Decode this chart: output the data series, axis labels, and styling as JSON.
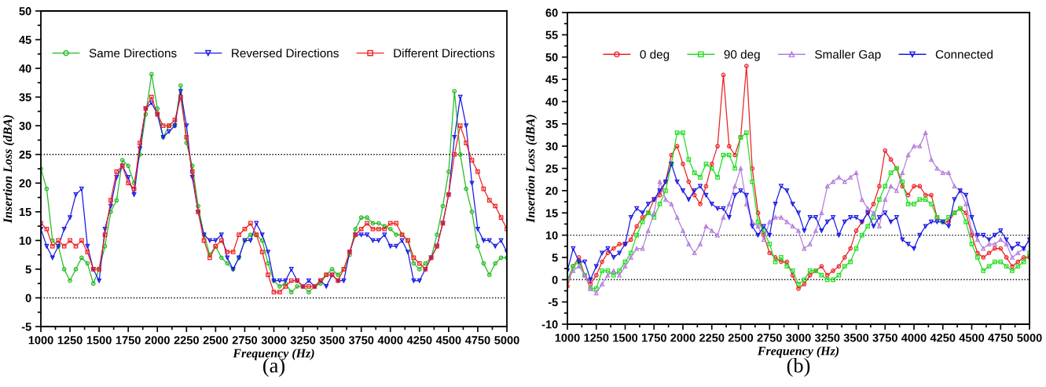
{
  "chart_data": [
    {
      "type": "line",
      "xlabel": "Frequency (Hz)",
      "ylabel": "Insertion Loss (dBA)",
      "annotations": [
        "(a)"
      ],
      "legend": "top",
      "line_style": "solid",
      "x": [
        1000,
        1050,
        1100,
        1150,
        1200,
        1250,
        1300,
        1350,
        1400,
        1450,
        1500,
        1550,
        1600,
        1650,
        1700,
        1750,
        1800,
        1850,
        1900,
        1950,
        2000,
        2050,
        2100,
        2150,
        2200,
        2250,
        2300,
        2350,
        2400,
        2450,
        2500,
        2550,
        2600,
        2650,
        2700,
        2750,
        2800,
        2850,
        2900,
        2950,
        3000,
        3050,
        3100,
        3150,
        3200,
        3250,
        3300,
        3350,
        3400,
        3450,
        3500,
        3550,
        3600,
        3650,
        3700,
        3750,
        3800,
        3850,
        3900,
        3950,
        4000,
        4050,
        4100,
        4150,
        4200,
        4250,
        4300,
        4350,
        4400,
        4450,
        4500,
        4550,
        4600,
        4650,
        4700,
        4750,
        4800,
        4850,
        4900,
        4950,
        5000
      ],
      "xlim": [
        1000,
        5000
      ],
      "xticks": [
        1000,
        1250,
        1500,
        1750,
        2000,
        2250,
        2500,
        2750,
        3000,
        3250,
        3500,
        3750,
        4000,
        4250,
        4500,
        4750,
        5000
      ],
      "ylim": [
        -5,
        50
      ],
      "yticks": [
        -5,
        0,
        5,
        10,
        15,
        20,
        25,
        30,
        35,
        40,
        45,
        50
      ],
      "ref_lines": [
        {
          "axis": "y",
          "value": 25,
          "color": "#000000",
          "line_style": "dotted"
        },
        {
          "axis": "y",
          "value": 0,
          "color": "#000000",
          "line_style": "dotted"
        }
      ],
      "series": [
        {
          "name": "Same Directions",
          "color": "#22bb22",
          "marker": "circle",
          "values": [
            22.5,
            19,
            10,
            9,
            5,
            3,
            5,
            7,
            6,
            2.5,
            5,
            9,
            15,
            17,
            24,
            23,
            20,
            25,
            32,
            39,
            33,
            28,
            30,
            30,
            37,
            27,
            23,
            16,
            11,
            7.5,
            9,
            7,
            6,
            5,
            7,
            10,
            11,
            11,
            10,
            6,
            3,
            2,
            2.5,
            1,
            2,
            2,
            1,
            2,
            2.5,
            4,
            5,
            4,
            5,
            7.5,
            12,
            14,
            14,
            13,
            13,
            12.5,
            12,
            11,
            11,
            10,
            6,
            5,
            6,
            7,
            11,
            16,
            22,
            36,
            25,
            19,
            15,
            9,
            6,
            4,
            6,
            7,
            7
          ]
        },
        {
          "name": "Reversed Directions",
          "color": "#1a1ae6",
          "marker": "triangle_down",
          "values": [
            12,
            9,
            7,
            9,
            12,
            14,
            18,
            19,
            9,
            5,
            3,
            12,
            16,
            21,
            23,
            21,
            18,
            26,
            33,
            34,
            32,
            28,
            29,
            30,
            36,
            30,
            21,
            15,
            11,
            10,
            10,
            11,
            7,
            5,
            7,
            10,
            10,
            13,
            11,
            8,
            3,
            3,
            3,
            5,
            3,
            2,
            3,
            2,
            3,
            2,
            4,
            3,
            3,
            8,
            11,
            11,
            11,
            10,
            10,
            11,
            9,
            9,
            10,
            8,
            3,
            3,
            5,
            7,
            9,
            13,
            18,
            28,
            35,
            30,
            20,
            12,
            10,
            10,
            9,
            10,
            8
          ]
        },
        {
          "name": "Different Directions",
          "color": "#ee2222",
          "marker": "square",
          "values": [
            13,
            12,
            9,
            10,
            9,
            10,
            9,
            10,
            8,
            5,
            5,
            11,
            17,
            22,
            23,
            20,
            19,
            27,
            33,
            35,
            32,
            30,
            30,
            31,
            35,
            28,
            22,
            15,
            10,
            7,
            9,
            10,
            8,
            8,
            11,
            12,
            13,
            11,
            8,
            4,
            1,
            1,
            2,
            3,
            3,
            2,
            2,
            2,
            3,
            4,
            4,
            3,
            5,
            8,
            11,
            12,
            13,
            12,
            12,
            12,
            13,
            13,
            11,
            10,
            7,
            6,
            5,
            7,
            9,
            13,
            18,
            25,
            30,
            27,
            24,
            22,
            19,
            17,
            16,
            14,
            12
          ]
        }
      ]
    },
    {
      "type": "line",
      "xlabel": "Frequency (Hz)",
      "ylabel": "Insertion Loss (dBA)",
      "annotations": [
        "(b)"
      ],
      "legend": "top",
      "line_style": "solid",
      "x": [
        1000,
        1050,
        1100,
        1150,
        1200,
        1250,
        1300,
        1350,
        1400,
        1450,
        1500,
        1550,
        1600,
        1650,
        1700,
        1750,
        1800,
        1850,
        1900,
        1950,
        2000,
        2050,
        2100,
        2150,
        2200,
        2250,
        2300,
        2350,
        2400,
        2450,
        2500,
        2550,
        2600,
        2650,
        2700,
        2750,
        2800,
        2850,
        2900,
        2950,
        3000,
        3050,
        3100,
        3150,
        3200,
        3250,
        3300,
        3350,
        3400,
        3450,
        3500,
        3550,
        3600,
        3650,
        3700,
        3750,
        3800,
        3850,
        3900,
        3950,
        4000,
        4050,
        4100,
        4150,
        4200,
        4250,
        4300,
        4350,
        4400,
        4450,
        4500,
        4550,
        4600,
        4650,
        4700,
        4750,
        4800,
        4850,
        4900,
        4950,
        5000
      ],
      "xlim": [
        1000,
        5000
      ],
      "xticks": [
        1000,
        1250,
        1500,
        1750,
        2000,
        2250,
        2500,
        2750,
        3000,
        3250,
        3500,
        3750,
        4000,
        4250,
        4500,
        4750,
        5000
      ],
      "ylim": [
        -10,
        60
      ],
      "yticks": [
        -10,
        -5,
        0,
        5,
        10,
        15,
        20,
        25,
        30,
        35,
        40,
        45,
        50,
        55,
        60
      ],
      "ref_lines": [
        {
          "axis": "y",
          "value": 10,
          "color": "#000000",
          "line_style": "dotted"
        },
        {
          "axis": "y",
          "value": 0,
          "color": "#000000",
          "line_style": "dotted"
        }
      ],
      "series": [
        {
          "name": "0 deg",
          "color": "#ee2222",
          "marker": "circle",
          "values": [
            -1.5,
            3,
            5,
            1,
            -1,
            1,
            4,
            6,
            7,
            8,
            8,
            9,
            12,
            14,
            15,
            18,
            19,
            22,
            28,
            30,
            26,
            22,
            19,
            17,
            21,
            26,
            30,
            46,
            30,
            28,
            32,
            48,
            25,
            15,
            10,
            6,
            5,
            4,
            4,
            1,
            -2,
            -1,
            1,
            2,
            3,
            1,
            2,
            3,
            5,
            7,
            11,
            13,
            15,
            17,
            21,
            29,
            27,
            25,
            21,
            19,
            21,
            21,
            19,
            19,
            14,
            13,
            13,
            15,
            16,
            15,
            10,
            6,
            5,
            6,
            7,
            7,
            5,
            3,
            4,
            5,
            5
          ]
        },
        {
          "name": "90 deg",
          "color": "#22dd22",
          "marker": "square",
          "values": [
            0,
            3,
            4,
            1,
            -2,
            -2,
            2,
            2,
            1,
            2,
            4,
            6,
            10,
            13,
            15,
            14,
            17,
            20,
            26,
            33,
            33,
            27,
            24,
            23,
            26,
            25,
            23,
            28,
            28,
            25,
            32,
            33,
            22,
            13,
            11,
            8,
            4,
            5,
            3,
            2,
            -1,
            0,
            2,
            2,
            1,
            0,
            0,
            1,
            3,
            4,
            7,
            10,
            12,
            14,
            18,
            21,
            24,
            25,
            22,
            17,
            17,
            18,
            18,
            17,
            14,
            13,
            14,
            15,
            16,
            13,
            8,
            5,
            2,
            3,
            4,
            4,
            3,
            2,
            3,
            4,
            6
          ]
        },
        {
          "name": "Smaller Gap",
          "color": "#b57edc",
          "marker": "triangle",
          "values": [
            0,
            2,
            3,
            1,
            -2,
            -3,
            -1,
            1,
            2,
            1,
            3,
            5,
            7,
            7,
            11,
            15,
            22,
            18,
            17,
            14,
            11,
            8,
            6,
            8,
            12,
            11,
            10,
            14,
            17,
            21,
            25,
            17,
            13,
            12,
            9,
            13,
            14,
            14,
            13,
            12,
            11,
            7,
            8,
            11,
            15,
            21,
            22,
            23,
            22,
            23,
            24,
            18,
            16,
            15,
            12,
            18,
            21,
            20,
            24,
            28,
            30,
            30,
            33,
            27,
            25,
            24,
            24,
            21,
            20,
            17,
            11,
            9,
            7,
            8,
            8,
            9,
            8,
            5,
            6,
            7,
            9
          ]
        },
        {
          "name": "Connected",
          "color": "#1a1ae6",
          "marker": "triangle_down",
          "values": [
            2,
            7,
            4,
            4,
            0,
            3,
            6,
            7,
            5,
            6,
            8,
            14,
            16,
            15,
            17,
            18,
            20,
            22,
            26,
            22,
            20,
            18,
            20,
            21,
            19,
            17,
            16,
            16,
            14,
            19,
            20,
            19,
            12,
            10,
            12,
            10,
            17,
            21,
            20,
            17,
            15,
            11,
            14,
            14,
            11,
            13,
            14,
            10,
            13,
            14,
            14,
            13,
            15,
            12,
            14,
            15,
            13,
            14,
            9,
            8,
            7,
            10,
            12,
            13,
            13,
            13,
            12,
            18,
            20,
            19,
            14,
            10,
            10,
            9,
            10,
            11,
            9,
            7,
            8,
            7,
            9
          ]
        }
      ]
    }
  ]
}
